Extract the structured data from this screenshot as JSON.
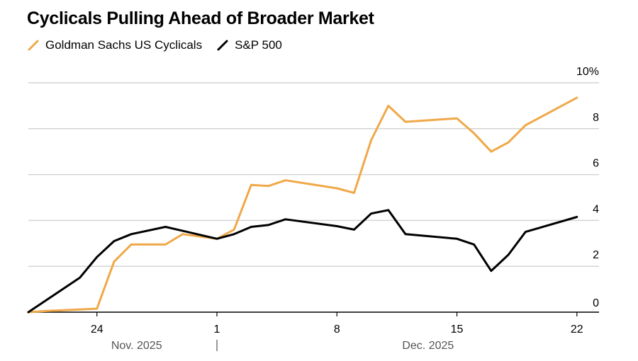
{
  "chart_data": {
    "type": "line",
    "title": "Cyclicals Pulling Ahead of Broader Market",
    "xlabel": "",
    "ylabel": "",
    "ylim": [
      0,
      10
    ],
    "y_ticks": [
      {
        "value": 0,
        "label": "0"
      },
      {
        "value": 2,
        "label": "2"
      },
      {
        "value": 4,
        "label": "4"
      },
      {
        "value": 6,
        "label": "6"
      },
      {
        "value": 8,
        "label": "8"
      },
      {
        "value": 10,
        "label": "10%"
      }
    ],
    "x_domain": [
      "2025-11-20",
      "2025-12-23"
    ],
    "x_ticks": [
      {
        "date": "2025-11-24",
        "label": "24"
      },
      {
        "date": "2025-12-01",
        "label": "1"
      },
      {
        "date": "2025-12-08",
        "label": "8"
      },
      {
        "date": "2025-12-15",
        "label": "15"
      },
      {
        "date": "2025-12-22",
        "label": "22"
      }
    ],
    "month_labels": [
      {
        "label": "Nov. 2025",
        "date": "2025-11-24"
      },
      {
        "label": "Dec. 2025",
        "date": "2025-12-11"
      }
    ],
    "month_separator_date": "2025-12-01",
    "series": [
      {
        "name": "Goldman Sachs US Cyclicals",
        "color": "#f0a848",
        "points": [
          [
            "2025-11-20",
            0.0
          ],
          [
            "2025-11-21",
            0.05
          ],
          [
            "2025-11-24",
            0.15
          ],
          [
            "2025-11-25",
            2.2
          ],
          [
            "2025-11-26",
            2.95
          ],
          [
            "2025-11-28",
            2.95
          ],
          [
            "2025-11-29",
            3.4
          ],
          [
            "2025-12-01",
            3.2
          ],
          [
            "2025-12-02",
            3.6
          ],
          [
            "2025-12-03",
            5.55
          ],
          [
            "2025-12-04",
            5.5
          ],
          [
            "2025-12-05",
            5.75
          ],
          [
            "2025-12-08",
            5.4
          ],
          [
            "2025-12-09",
            5.2
          ],
          [
            "2025-12-10",
            7.5
          ],
          [
            "2025-12-11",
            9.0
          ],
          [
            "2025-12-12",
            8.3
          ],
          [
            "2025-12-15",
            8.45
          ],
          [
            "2025-12-16",
            7.8
          ],
          [
            "2025-12-17",
            7.0
          ],
          [
            "2025-12-18",
            7.4
          ],
          [
            "2025-12-19",
            8.15
          ],
          [
            "2025-12-22",
            9.35
          ]
        ]
      },
      {
        "name": "S&P 500",
        "color": "#000000",
        "points": [
          [
            "2025-11-20",
            0.0
          ],
          [
            "2025-11-23",
            1.5
          ],
          [
            "2025-11-24",
            2.4
          ],
          [
            "2025-11-25",
            3.1
          ],
          [
            "2025-11-26",
            3.4
          ],
          [
            "2025-11-28",
            3.72
          ],
          [
            "2025-12-01",
            3.2
          ],
          [
            "2025-12-02",
            3.4
          ],
          [
            "2025-12-03",
            3.72
          ],
          [
            "2025-12-04",
            3.8
          ],
          [
            "2025-12-05",
            4.05
          ],
          [
            "2025-12-08",
            3.75
          ],
          [
            "2025-12-09",
            3.6
          ],
          [
            "2025-12-10",
            4.3
          ],
          [
            "2025-12-11",
            4.45
          ],
          [
            "2025-12-12",
            3.4
          ],
          [
            "2025-12-15",
            3.2
          ],
          [
            "2025-12-16",
            2.95
          ],
          [
            "2025-12-17",
            1.8
          ],
          [
            "2025-12-18",
            2.5
          ],
          [
            "2025-12-19",
            3.5
          ],
          [
            "2025-12-22",
            4.15
          ]
        ]
      }
    ]
  }
}
